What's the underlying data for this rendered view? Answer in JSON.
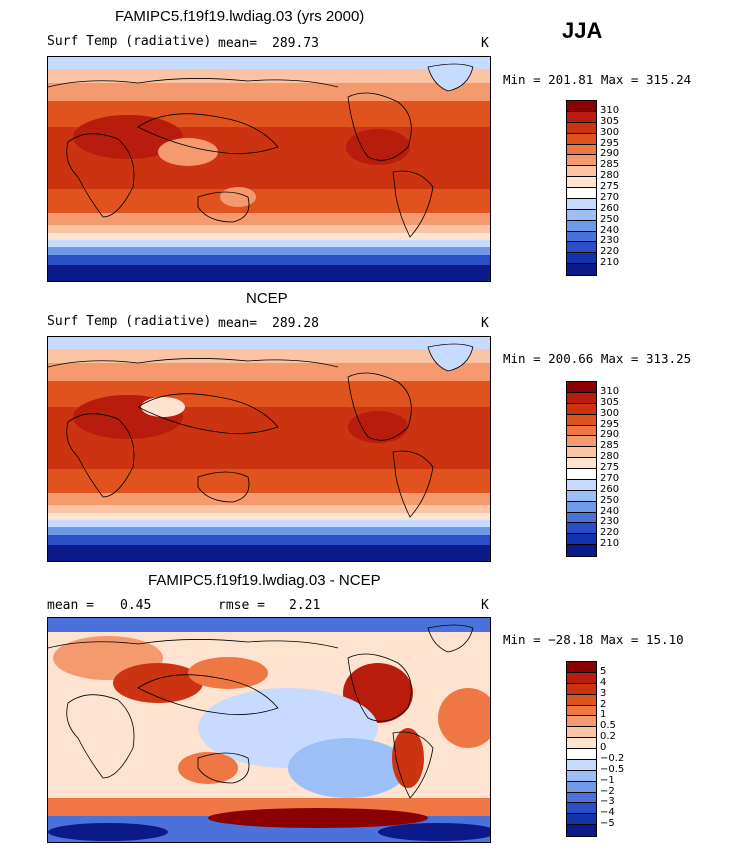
{
  "season": "JJA",
  "units": "K",
  "panels": [
    {
      "title": "FAMIPC5.f19f19.lwdiag.03 (yrs 2000)",
      "left_label": "Surf Temp (radiative)",
      "stat1_label": "mean=",
      "stat1_value": "289.73",
      "stat2_label": "",
      "stat2_value": "",
      "minmax": "Min = 201.81 Max = 315.24"
    },
    {
      "title": "NCEP",
      "left_label": "Surf Temp (radiative)",
      "stat1_label": "mean=",
      "stat1_value": "289.28",
      "stat2_label": "",
      "stat2_value": "",
      "minmax": "Min = 200.66 Max = 313.25"
    },
    {
      "title": "FAMIPC5.f19f19.lwdiag.03 - NCEP",
      "left_label": "",
      "stat1_label": "mean =",
      "stat1_value": "0.45",
      "stat2_label": "rmse =",
      "stat2_value": "2.21",
      "minmax": "Min = −28.18 Max =  15.10"
    }
  ],
  "colorbar_abs": {
    "labels": [
      "310",
      "305",
      "300",
      "295",
      "290",
      "285",
      "280",
      "275",
      "270",
      "260",
      "250",
      "240",
      "230",
      "220",
      "210"
    ],
    "colors": [
      "#8b0000",
      "#b71c0c",
      "#cc3311",
      "#e0521e",
      "#ee7744",
      "#f59a6e",
      "#fbc4a4",
      "#fde3d0",
      "#ffffff",
      "#c6dbff",
      "#9dbff7",
      "#6f9ae8",
      "#4a72da",
      "#2a4fc8",
      "#1333aa",
      "#0b1a88"
    ]
  },
  "colorbar_diff": {
    "labels": [
      "5",
      "4",
      "3",
      "2",
      "1",
      "0.5",
      "0.2",
      "0",
      "−0.2",
      "−0.5",
      "−1",
      "−2",
      "−3",
      "−4",
      "−5"
    ],
    "colors": [
      "#8b0000",
      "#b71c0c",
      "#cc3311",
      "#e0521e",
      "#ee7744",
      "#f59a6e",
      "#fbc4a4",
      "#fde3d0",
      "#ffffff",
      "#c6dbff",
      "#9dbff7",
      "#6f9ae8",
      "#4a72da",
      "#2a4fc8",
      "#1333aa",
      "#0b1a88"
    ]
  },
  "chart_data": [
    {
      "type": "heatmap",
      "title": "FAMIPC5.f19f19.lwdiag.03 (yrs 2000)",
      "variable": "Surf Temp (radiative)",
      "units": "K",
      "mean": 289.73,
      "min": 201.81,
      "max": 315.24,
      "contour_levels": [
        210,
        220,
        230,
        240,
        250,
        260,
        270,
        275,
        280,
        285,
        290,
        295,
        300,
        305,
        310
      ]
    },
    {
      "type": "heatmap",
      "title": "NCEP",
      "variable": "Surf Temp (radiative)",
      "units": "K",
      "mean": 289.28,
      "min": 200.66,
      "max": 313.25,
      "contour_levels": [
        210,
        220,
        230,
        240,
        250,
        260,
        270,
        275,
        280,
        285,
        290,
        295,
        300,
        305,
        310
      ]
    },
    {
      "type": "heatmap",
      "title": "FAMIPC5.f19f19.lwdiag.03 - NCEP",
      "units": "K",
      "mean": 0.45,
      "rmse": 2.21,
      "min": -28.18,
      "max": 15.1,
      "contour_levels": [
        -5,
        -4,
        -3,
        -2,
        -1,
        -0.5,
        -0.2,
        0,
        0.2,
        0.5,
        1,
        2,
        3,
        4,
        5
      ]
    }
  ]
}
